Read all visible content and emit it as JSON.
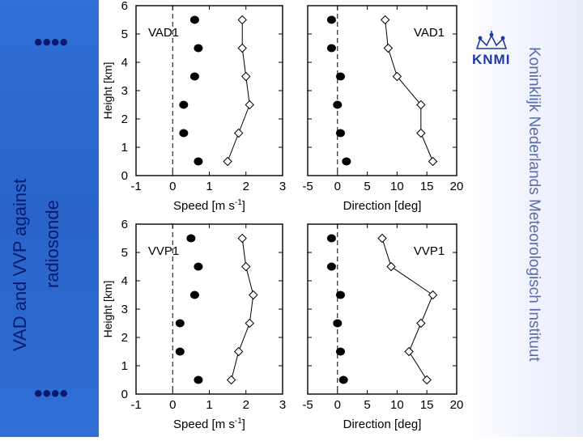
{
  "slide": {
    "title_line1": "VAD and VVP against",
    "title_line2": "radiosonde",
    "dots_top": "••••",
    "dots_bottom": "••••",
    "logo_text": "KNMI",
    "institute": "Koninklijk Nederlands Meteorologisch Instituut"
  },
  "colors": {
    "left_panel": "#2f6fd6",
    "title_text": "#0a1a6e",
    "logo": "#1f3aa8"
  },
  "chart_data": [
    {
      "type": "line",
      "title": "VAD1",
      "xlabel": "Speed [m s-1]",
      "ylabel": "Height [km]",
      "xlim": [
        -1,
        3
      ],
      "ylim": [
        0,
        6
      ],
      "xticks": [
        -1,
        0,
        1,
        2,
        3
      ],
      "yticks": [
        0,
        1,
        2,
        3,
        4,
        5,
        6
      ],
      "dashed_ref_x": 0,
      "series": [
        {
          "marker": "filled-circle",
          "connected": false,
          "points": [
            [
              0.7,
              0.5
            ],
            [
              0.3,
              1.5
            ],
            [
              0.3,
              2.5
            ],
            [
              0.6,
              3.5
            ],
            [
              0.7,
              4.5
            ],
            [
              0.6,
              5.5
            ]
          ]
        },
        {
          "marker": "open-diamond",
          "connected": true,
          "points": [
            [
              1.5,
              0.5
            ],
            [
              1.8,
              1.5
            ],
            [
              2.1,
              2.5
            ],
            [
              2.0,
              3.5
            ],
            [
              1.9,
              4.5
            ],
            [
              1.9,
              5.5
            ]
          ]
        }
      ]
    },
    {
      "type": "line",
      "title": "VAD1",
      "xlabel": "Direction [deg]",
      "ylabel": "",
      "xlim": [
        -5,
        20
      ],
      "ylim": [
        0,
        6
      ],
      "xticks": [
        -5,
        0,
        5,
        10,
        15,
        20
      ],
      "yticks": [
        0,
        1,
        2,
        3,
        4,
        5,
        6
      ],
      "dashed_ref_x": 0,
      "series": [
        {
          "marker": "filled-circle",
          "connected": false,
          "points": [
            [
              1.5,
              0.5
            ],
            [
              0.5,
              1.5
            ],
            [
              0,
              2.5
            ],
            [
              0.5,
              3.5
            ],
            [
              -1,
              4.5
            ],
            [
              -1,
              5.5
            ]
          ]
        },
        {
          "marker": "open-diamond",
          "connected": true,
          "points": [
            [
              16,
              0.5
            ],
            [
              14,
              1.5
            ],
            [
              14,
              2.5
            ],
            [
              10,
              3.5
            ],
            [
              8.5,
              4.5
            ],
            [
              8,
              5.5
            ]
          ]
        }
      ]
    },
    {
      "type": "line",
      "title": "VVP1",
      "xlabel": "Speed [m s-1]",
      "ylabel": "Height [km]",
      "xlim": [
        -1,
        3
      ],
      "ylim": [
        0,
        6
      ],
      "xticks": [
        -1,
        0,
        1,
        2,
        3
      ],
      "yticks": [
        0,
        1,
        2,
        3,
        4,
        5,
        6
      ],
      "dashed_ref_x": 0,
      "series": [
        {
          "marker": "filled-circle",
          "connected": false,
          "points": [
            [
              0.7,
              0.5
            ],
            [
              0.2,
              1.5
            ],
            [
              0.2,
              2.5
            ],
            [
              0.6,
              3.5
            ],
            [
              0.7,
              4.5
            ],
            [
              0.5,
              5.5
            ]
          ]
        },
        {
          "marker": "open-diamond",
          "connected": true,
          "points": [
            [
              1.6,
              0.5
            ],
            [
              1.8,
              1.5
            ],
            [
              2.1,
              2.5
            ],
            [
              2.2,
              3.5
            ],
            [
              2.0,
              4.5
            ],
            [
              1.9,
              5.5
            ]
          ]
        }
      ]
    },
    {
      "type": "line",
      "title": "VVP1",
      "xlabel": "Direction [deg]",
      "ylabel": "",
      "xlim": [
        -5,
        20
      ],
      "ylim": [
        0,
        6
      ],
      "xticks": [
        -5,
        0,
        5,
        10,
        15,
        20
      ],
      "yticks": [
        0,
        1,
        2,
        3,
        4,
        5,
        6
      ],
      "dashed_ref_x": 0,
      "series": [
        {
          "marker": "filled-circle",
          "connected": false,
          "points": [
            [
              1,
              0.5
            ],
            [
              0.5,
              1.5
            ],
            [
              0,
              2.5
            ],
            [
              0.5,
              3.5
            ],
            [
              -1,
              4.5
            ],
            [
              -1,
              5.5
            ]
          ]
        },
        {
          "marker": "open-diamond",
          "connected": true,
          "points": [
            [
              15,
              0.5
            ],
            [
              12,
              1.5
            ],
            [
              14,
              2.5
            ],
            [
              16,
              3.5
            ],
            [
              9,
              4.5
            ],
            [
              7.5,
              5.5
            ]
          ]
        }
      ]
    }
  ]
}
